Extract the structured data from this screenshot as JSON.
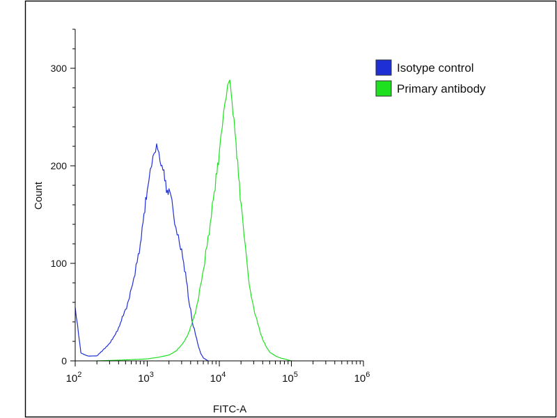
{
  "chart_data": {
    "type": "line",
    "xlabel": "FITC-A",
    "ylabel": "Count",
    "x_scale": "log",
    "xlim": [
      100,
      1000000
    ],
    "ylim": [
      0,
      340
    ],
    "x_ticks": [
      {
        "base": "10",
        "exp": "2"
      },
      {
        "base": "10",
        "exp": "3"
      },
      {
        "base": "10",
        "exp": "4"
      },
      {
        "base": "10",
        "exp": "5"
      },
      {
        "base": "10",
        "exp": "6"
      }
    ],
    "y_ticks": [
      "0",
      "100",
      "200",
      "300"
    ],
    "legend_position": "top-right",
    "series": [
      {
        "name": "Isotype control",
        "color": "#1f2fd6",
        "x": [
          100,
          120,
          150,
          200,
          250,
          300,
          350,
          400,
          450,
          500,
          550,
          600,
          650,
          700,
          750,
          800,
          850,
          900,
          950,
          1000,
          1050,
          1100,
          1150,
          1200,
          1250,
          1300,
          1350,
          1400,
          1450,
          1500,
          1550,
          1600,
          1650,
          1700,
          1800,
          1900,
          2000,
          2100,
          2200,
          2300,
          2400,
          2500,
          2600,
          2700,
          2800,
          2900,
          3000,
          3200,
          3400,
          3600,
          3800,
          4000,
          4200,
          4500,
          5000,
          5500,
          6000,
          7000
        ],
        "y": [
          55,
          8,
          5,
          5,
          12,
          18,
          25,
          34,
          44,
          52,
          62,
          72,
          84,
          96,
          108,
          120,
          134,
          150,
          162,
          172,
          184,
          192,
          198,
          204,
          210,
          214,
          218,
          215,
          208,
          202,
          200,
          196,
          194,
          190,
          182,
          175,
          172,
          170,
          160,
          150,
          140,
          133,
          128,
          125,
          118,
          114,
          112,
          100,
          88,
          76,
          60,
          52,
          40,
          32,
          18,
          8,
          3,
          0
        ]
      },
      {
        "name": "Primary antibody",
        "color": "#1fe01f",
        "x": [
          200,
          500,
          1000,
          1500,
          2000,
          2500,
          3000,
          3500,
          4000,
          4500,
          5000,
          5500,
          6000,
          6500,
          7000,
          7500,
          8000,
          8500,
          9000,
          9500,
          10000,
          10500,
          11000,
          11500,
          12000,
          12500,
          13000,
          13500,
          14000,
          14500,
          15000,
          16000,
          17000,
          18000,
          19000,
          20000,
          21000,
          22000,
          23000,
          24000,
          25000,
          27000,
          30000,
          33000,
          36000,
          40000,
          45000,
          50000,
          60000,
          70000,
          80000,
          100000
        ],
        "y": [
          0,
          1,
          2,
          4,
          6,
          10,
          16,
          24,
          34,
          46,
          60,
          76,
          92,
          110,
          126,
          142,
          158,
          172,
          186,
          200,
          214,
          226,
          238,
          250,
          262,
          270,
          278,
          284,
          282,
          274,
          266,
          244,
          224,
          200,
          180,
          162,
          144,
          128,
          114,
          102,
          90,
          70,
          54,
          42,
          32,
          22,
          14,
          9,
          5,
          3,
          2,
          0
        ]
      }
    ]
  }
}
